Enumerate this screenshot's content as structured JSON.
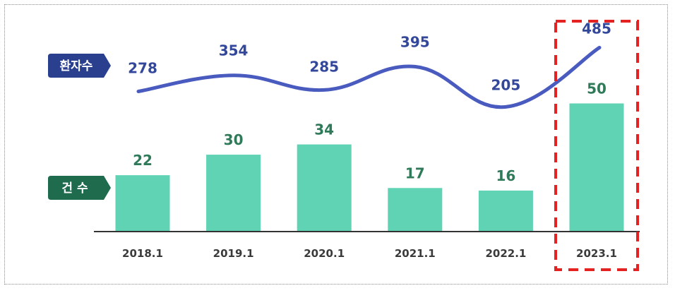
{
  "chart_data": {
    "type": "bar",
    "categories": [
      "2018.1",
      "2019.1",
      "2020.1",
      "2021.1",
      "2022.1",
      "2023.1"
    ],
    "series": [
      {
        "name": "건 수",
        "type": "bar",
        "values": [
          22,
          30,
          34,
          17,
          16,
          50
        ]
      },
      {
        "name": "환자수",
        "type": "line",
        "values": [
          278,
          354,
          285,
          395,
          205,
          485
        ]
      }
    ],
    "highlight_category": "2023.1",
    "colors": {
      "bar": "#5fd3b4",
      "bar_label": "#2f7a58",
      "line": "#4a5bbf",
      "line_label": "#34489b",
      "line_tag": "#2b3f8f",
      "bar_tag": "#1e6b4e",
      "highlight": "#e52222",
      "axis": "#333333"
    },
    "grid": false
  }
}
